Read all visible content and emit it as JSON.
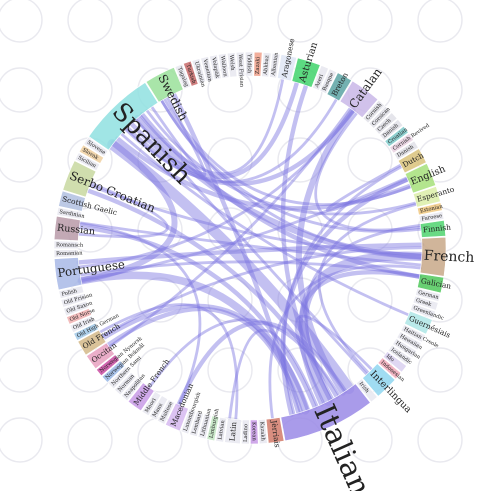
{
  "diagram": {
    "segments": [
      {
        "name": "Aragonese",
        "color": "#dfe6f6",
        "size": 2
      },
      {
        "name": "Asturian",
        "color": "#3fd36b",
        "size": 3
      },
      {
        "name": "Azeri",
        "color": "#e6e6ee",
        "size": 1
      },
      {
        "name": "Basque",
        "color": "#e6e6ee",
        "size": 1
      },
      {
        "name": "Breton",
        "color": "#5aa3a3",
        "size": 2
      },
      {
        "name": "Catalan",
        "color": "#c9b7e8",
        "size": 4
      },
      {
        "name": "Cornish",
        "color": "#e0e0e8",
        "size": 1
      },
      {
        "name": "Corsican",
        "color": "#e0e0e8",
        "size": 1
      },
      {
        "name": "Czech",
        "color": "#e0e0e8",
        "size": 1
      },
      {
        "name": "Danish",
        "color": "#e0e0e8",
        "size": 1
      },
      {
        "name": "Croatian",
        "color": "#7dc9c9",
        "size": 1
      },
      {
        "name": "Cornish Revived",
        "color": "#e8d0e0",
        "size": 1
      },
      {
        "name": "Danish",
        "color": "#e0e0e8",
        "size": 1
      },
      {
        "name": "Dutch",
        "color": "#d9c27a",
        "size": 2
      },
      {
        "name": "English",
        "color": "#a6e07a",
        "size": 3
      },
      {
        "name": "Esperanto",
        "color": "#dcefa8",
        "size": 2
      },
      {
        "name": "Estonian",
        "color": "#f0c880",
        "size": 1
      },
      {
        "name": "Faroese",
        "color": "#e8e8f0",
        "size": 1
      },
      {
        "name": "Finnish",
        "color": "#4fd36e",
        "size": 2
      },
      {
        "name": "French",
        "color": "#c8a888",
        "size": 5
      },
      {
        "name": "Galician",
        "color": "#4fc85a",
        "size": 2
      },
      {
        "name": "German",
        "color": "#e8e8f0",
        "size": 1
      },
      {
        "name": "Greek",
        "color": "#e8e8f0",
        "size": 1
      },
      {
        "name": "Greenlandic",
        "color": "#e8e8f0",
        "size": 1
      },
      {
        "name": "Guernésiais",
        "color": "#aee6e6",
        "size": 2
      },
      {
        "name": "Haitian Creole",
        "color": "#e8e8f0",
        "size": 1
      },
      {
        "name": "Hawaiian",
        "color": "#e8e8f0",
        "size": 1
      },
      {
        "name": "Hungarian",
        "color": "#e8e8f0",
        "size": 1
      },
      {
        "name": "Icelandic",
        "color": "#e8e8f0",
        "size": 1
      },
      {
        "name": "Ido",
        "color": "#d9d0f0",
        "size": 1
      },
      {
        "name": "Indonesian",
        "color": "#f0a8b8",
        "size": 1
      },
      {
        "name": "Interlingua",
        "color": "#8fd6f0",
        "size": 3
      },
      {
        "name": "Irish",
        "color": "#e8e8f0",
        "size": 1
      },
      {
        "name": "Italian",
        "color": "#9a8ae6",
        "size": 12
      },
      {
        "name": "Jèrriais",
        "color": "#d27a6a",
        "size": 2
      },
      {
        "name": "Kazakh",
        "color": "#e8e8f0",
        "size": 1
      },
      {
        "name": "Korean",
        "color": "#c89ae6",
        "size": 1
      },
      {
        "name": "Ladino",
        "color": "#e8e8f0",
        "size": 1
      },
      {
        "name": "Latin",
        "color": "#e8e8f0",
        "size": 2
      },
      {
        "name": "Latvian",
        "color": "#e8e8f0",
        "size": 1
      },
      {
        "name": "Limburgish",
        "color": "#c2e6c2",
        "size": 1
      },
      {
        "name": "Lithuanian",
        "color": "#e8e8f0",
        "size": 1
      },
      {
        "name": "Lombard",
        "color": "#e8e8f0",
        "size": 1
      },
      {
        "name": "Luxembourgish",
        "color": "#e8e8f0",
        "size": 1
      },
      {
        "name": "Macedonian",
        "color": "#d6b8f0",
        "size": 2
      },
      {
        "name": "Maltese",
        "color": "#e8e8f0",
        "size": 1
      },
      {
        "name": "Manx",
        "color": "#e8e8f0",
        "size": 1
      },
      {
        "name": "Maori",
        "color": "#e8e8f0",
        "size": 1
      },
      {
        "name": "Middle French",
        "color": "#c89ae6",
        "size": 2
      },
      {
        "name": "Neapolitan",
        "color": "#e8e8f0",
        "size": 1
      },
      {
        "name": "Norman",
        "color": "#e8e8f0",
        "size": 1
      },
      {
        "name": "Northern Sami",
        "color": "#e8e8f0",
        "size": 1
      },
      {
        "name": "Norwegian Bokmål",
        "color": "#9ab8e6",
        "size": 1
      },
      {
        "name": "Norwegian Nynorsk",
        "color": "#c84aa0",
        "size": 1
      },
      {
        "name": "Occitan",
        "color": "#e8a0c0",
        "size": 2
      },
      {
        "name": "Old French",
        "color": "#d4b888",
        "size": 2
      },
      {
        "name": "Old High German",
        "color": "#a0c8e8",
        "size": 1
      },
      {
        "name": "Old Irish",
        "color": "#e8e8f0",
        "size": 1
      },
      {
        "name": "Old Norse",
        "color": "#f0b0b0",
        "size": 1
      },
      {
        "name": "Old Saxon",
        "color": "#e8e8f0",
        "size": 1
      },
      {
        "name": "Old Frisian",
        "color": "#e8e8f0",
        "size": 1
      },
      {
        "name": "Polish",
        "color": "#e8e8f0",
        "size": 1
      },
      {
        "name": "Portuguese",
        "color": "#a8b8e6",
        "size": 4
      },
      {
        "name": "Romanian",
        "color": "#e8e8f0",
        "size": 1
      },
      {
        "name": "Romansch",
        "color": "#e8e8f0",
        "size": 1
      },
      {
        "name": "Russian",
        "color": "#b89aa8",
        "size": 3
      },
      {
        "name": "Sardinian",
        "color": "#e8e8f0",
        "size": 1
      },
      {
        "name": "Scottish Gaelic",
        "color": "#b0c0e0",
        "size": 2
      },
      {
        "name": "Serbo Croatian",
        "color": "#c8d8a0",
        "size": 4
      },
      {
        "name": "Sicilian",
        "color": "#e8e8f0",
        "size": 1
      },
      {
        "name": "Slovak",
        "color": "#f0d0a0",
        "size": 1
      },
      {
        "name": "Slovene",
        "color": "#e8e8f0",
        "size": 1
      },
      {
        "name": "Spanish",
        "color": "#8fe0e0",
        "size": 10
      },
      {
        "name": "Swedish",
        "color": "#9ae09a",
        "size": 4
      },
      {
        "name": "Tagalog",
        "color": "#e8e8f0",
        "size": 1
      },
      {
        "name": "Turkish",
        "color": "#c86a6a",
        "size": 1
      },
      {
        "name": "Ukrainian",
        "color": "#e8e8f0",
        "size": 1
      },
      {
        "name": "Venetian",
        "color": "#e8e8f0",
        "size": 1
      },
      {
        "name": "Volapük",
        "color": "#e8e8f0",
        "size": 1
      },
      {
        "name": "Walloon",
        "color": "#e8e8f0",
        "size": 1
      },
      {
        "name": "Welsh",
        "color": "#e8e8f0",
        "size": 1
      },
      {
        "name": "West Frisian",
        "color": "#e8e8f0",
        "size": 1
      },
      {
        "name": "Yiddish",
        "color": "#e8e8f0",
        "size": 1
      },
      {
        "name": "Zazaki",
        "color": "#f0a08a",
        "size": 1
      },
      {
        "name": "Abkhaz",
        "color": "#e8e8f0",
        "size": 1
      },
      {
        "name": "Albanian",
        "color": "#e8e8f0",
        "size": 1
      }
    ],
    "links": [
      [
        "Italian",
        "Spanish",
        6
      ],
      [
        "Italian",
        "French",
        5
      ],
      [
        "Italian",
        "Portuguese",
        4
      ],
      [
        "Italian",
        "Catalan",
        3
      ],
      [
        "Italian",
        "Galician",
        2
      ],
      [
        "Italian",
        "Swedish",
        2
      ],
      [
        "Italian",
        "Serbo Croatian",
        2
      ],
      [
        "Italian",
        "Russian",
        2
      ],
      [
        "Italian",
        "English",
        2
      ],
      [
        "Italian",
        "Asturian",
        2
      ],
      [
        "Italian",
        "Old French",
        2
      ],
      [
        "Italian",
        "Macedonian",
        2
      ],
      [
        "Italian",
        "Interlingua",
        1
      ],
      [
        "Italian",
        "Occitan",
        2
      ],
      [
        "Italian",
        "Middle French",
        1
      ],
      [
        "Italian",
        "Latin",
        1
      ],
      [
        "Italian",
        "Dutch",
        1
      ],
      [
        "Italian",
        "Finnish",
        1
      ],
      [
        "Spanish",
        "French",
        3
      ],
      [
        "Spanish",
        "Portuguese",
        3
      ],
      [
        "Spanish",
        "Catalan",
        2
      ],
      [
        "Spanish",
        "Galician",
        2
      ],
      [
        "Spanish",
        "English",
        2
      ],
      [
        "Spanish",
        "Asturian",
        2
      ],
      [
        "Spanish",
        "Esperanto",
        1
      ],
      [
        "Spanish",
        "Guernésiais",
        1
      ],
      [
        "Spanish",
        "Interlingua",
        1
      ],
      [
        "Spanish",
        "Swedish",
        1
      ],
      [
        "Spanish",
        "Breton",
        1
      ],
      [
        "Spanish",
        "Aragonese",
        1
      ],
      [
        "French",
        "Portuguese",
        2
      ],
      [
        "French",
        "Serbo Croatian",
        1
      ],
      [
        "French",
        "Russian",
        1
      ],
      [
        "French",
        "Old French",
        1
      ],
      [
        "French",
        "Swedish",
        1
      ],
      [
        "French",
        "Jèrriais",
        1
      ],
      [
        "Portuguese",
        "Galician",
        1
      ],
      [
        "Portuguese",
        "Catalan",
        1
      ],
      [
        "Portuguese",
        "English",
        1
      ],
      [
        "Catalan",
        "Occitan",
        1
      ],
      [
        "Catalan",
        "Finnish",
        1
      ],
      [
        "Swedish",
        "English",
        1
      ],
      [
        "Serbo Croatian",
        "Russian",
        1
      ],
      [
        "Russian",
        "Macedonian",
        1
      ],
      [
        "English",
        "Dutch",
        1
      ],
      [
        "Interlingua",
        "Esperanto",
        1
      ],
      [
        "Swedish",
        "Finnish",
        1
      ],
      [
        "Latin",
        "Old French",
        1
      ]
    ]
  }
}
